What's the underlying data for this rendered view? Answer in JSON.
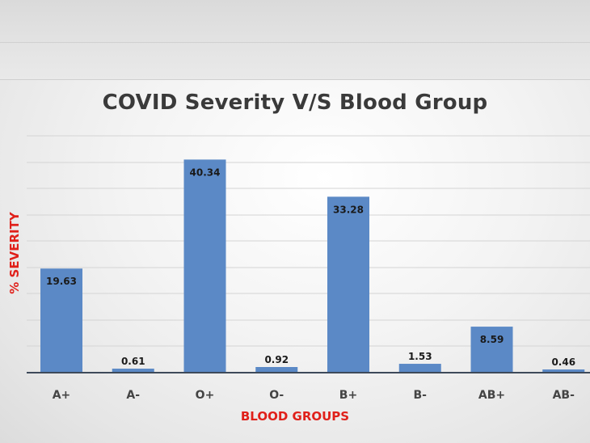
{
  "chart_data": {
    "type": "bar",
    "title": "COVID Severity V/S Blood Group",
    "xlabel": "BLOOD GROUPS",
    "ylabel": "% SEVERITY",
    "categories": [
      "A+",
      "A-",
      "O+",
      "O-",
      "B+",
      "B-",
      "AB+",
      "AB-"
    ],
    "values": [
      19.63,
      0.61,
      40.34,
      0.92,
      33.28,
      1.53,
      8.59,
      0.46
    ],
    "data_labels": [
      "19.63",
      "0.61",
      "40.34",
      "0.92",
      "33.28",
      "1.53",
      "8.59",
      "0.46"
    ],
    "ylim": [
      0,
      45
    ],
    "grid": true,
    "legend": "none",
    "bar_color": "#5b89c6",
    "axis_label_color": "#e0201a"
  }
}
